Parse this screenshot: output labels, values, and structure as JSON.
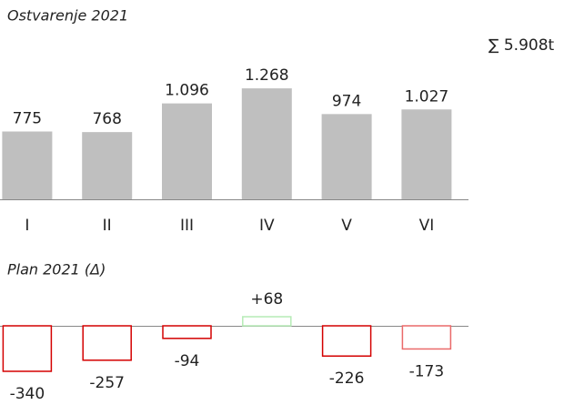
{
  "chart_data": [
    {
      "type": "bar",
      "title": "Ostvarenje 2021",
      "total_label": "∑ 5.908t",
      "categories": [
        "I",
        "II",
        "III",
        "IV",
        "V",
        "VI"
      ],
      "values": [
        775,
        768,
        1096,
        1268,
        974,
        1027
      ],
      "value_labels": [
        "775",
        "768",
        "1.096",
        "1.268",
        "974",
        "1.027"
      ],
      "color": "#bfbfbf",
      "ylim": [
        0,
        1300
      ]
    },
    {
      "type": "outline-bar",
      "title": "Plan 2021 (Δ)",
      "values": [
        -340,
        -257,
        -94,
        68,
        -226,
        -173
      ],
      "value_labels": [
        "-340",
        "-257",
        "-94",
        "+68",
        "-226",
        "-173"
      ],
      "colors": [
        "#d40000",
        "#d40000",
        "#d40000",
        "#b6ebb6",
        "#d40000",
        "#ea6a6a"
      ],
      "ylim": [
        -400,
        100
      ]
    }
  ]
}
